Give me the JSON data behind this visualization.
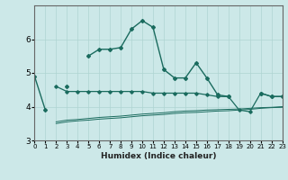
{
  "title": "",
  "xlabel": "Humidex (Indice chaleur)",
  "x": [
    0,
    1,
    2,
    3,
    4,
    5,
    6,
    7,
    8,
    9,
    10,
    11,
    12,
    13,
    14,
    15,
    16,
    17,
    18,
    19,
    20,
    21,
    22,
    23
  ],
  "line1_y": [
    4.9,
    3.9,
    null,
    4.6,
    null,
    5.5,
    5.7,
    5.7,
    5.75,
    6.3,
    6.55,
    6.35,
    5.1,
    4.85,
    4.85,
    5.3,
    4.85,
    4.35,
    4.3,
    null,
    null,
    4.4,
    4.3,
    4.3
  ],
  "line2_y": [
    null,
    null,
    4.6,
    4.45,
    4.45,
    4.45,
    4.45,
    4.45,
    4.45,
    4.45,
    4.45,
    4.4,
    4.4,
    4.4,
    4.4,
    4.4,
    4.35,
    4.3,
    4.3,
    3.9,
    3.85,
    4.4,
    4.3,
    4.3
  ],
  "line3_y": [
    null,
    null,
    3.55,
    3.6,
    3.62,
    3.65,
    3.68,
    3.7,
    3.72,
    3.75,
    3.78,
    3.8,
    3.82,
    3.85,
    3.87,
    3.88,
    3.9,
    3.91,
    3.92,
    3.93,
    3.95,
    3.97,
    3.98,
    4.0
  ],
  "line4_y": [
    null,
    null,
    3.5,
    3.55,
    3.58,
    3.6,
    3.63,
    3.65,
    3.67,
    3.7,
    3.73,
    3.75,
    3.77,
    3.8,
    3.82,
    3.83,
    3.85,
    3.87,
    3.88,
    3.9,
    3.92,
    3.95,
    3.97,
    3.98
  ],
  "line_color": "#1a6b5e",
  "bg_color": "#cce8e8",
  "grid_color": "#aed4d2",
  "axis_color": "#666666",
  "ylim": [
    3.0,
    7.0
  ],
  "xlim": [
    0,
    23
  ],
  "yticks": [
    3,
    4,
    5,
    6
  ],
  "xtick_labels": [
    "0",
    "1",
    "2",
    "3",
    "4",
    "5",
    "6",
    "7",
    "8",
    "9",
    "10",
    "11",
    "12",
    "13",
    "14",
    "15",
    "16",
    "17",
    "18",
    "19",
    "20",
    "21",
    "22",
    "23"
  ]
}
